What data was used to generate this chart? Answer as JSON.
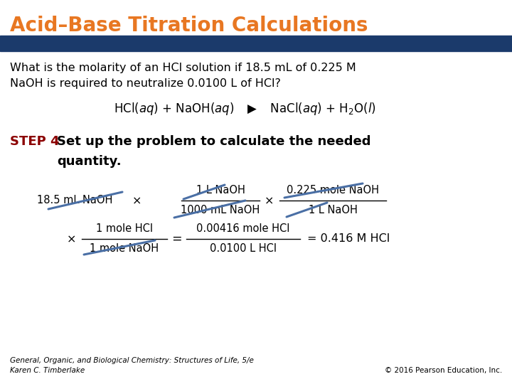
{
  "title": "Acid–Base Titration Calculations",
  "title_color": "#E87722",
  "title_fontsize": 20,
  "bg_color": "#FFFFFF",
  "header_bar_color": "#1B3A6B",
  "question_text": "What is the molarity of an HCl solution if 18.5 mL of 0.225 M\nNaOH is required to neutralize 0.0100 L of HCl?",
  "step_label": "STEP 4",
  "step_label_color": "#8B0000",
  "step_text": "  Set up the problem to calculate the needed\n          quantity.",
  "footer_left": "General, Organic, and Biological Chemistry: Structures of Life, 5/e\nKaren C. Timberlake",
  "footer_right": "© 2016 Pearson Education, Inc.",
  "footer_fontsize": 7.5,
  "cancel_color": "#4A6FA5"
}
